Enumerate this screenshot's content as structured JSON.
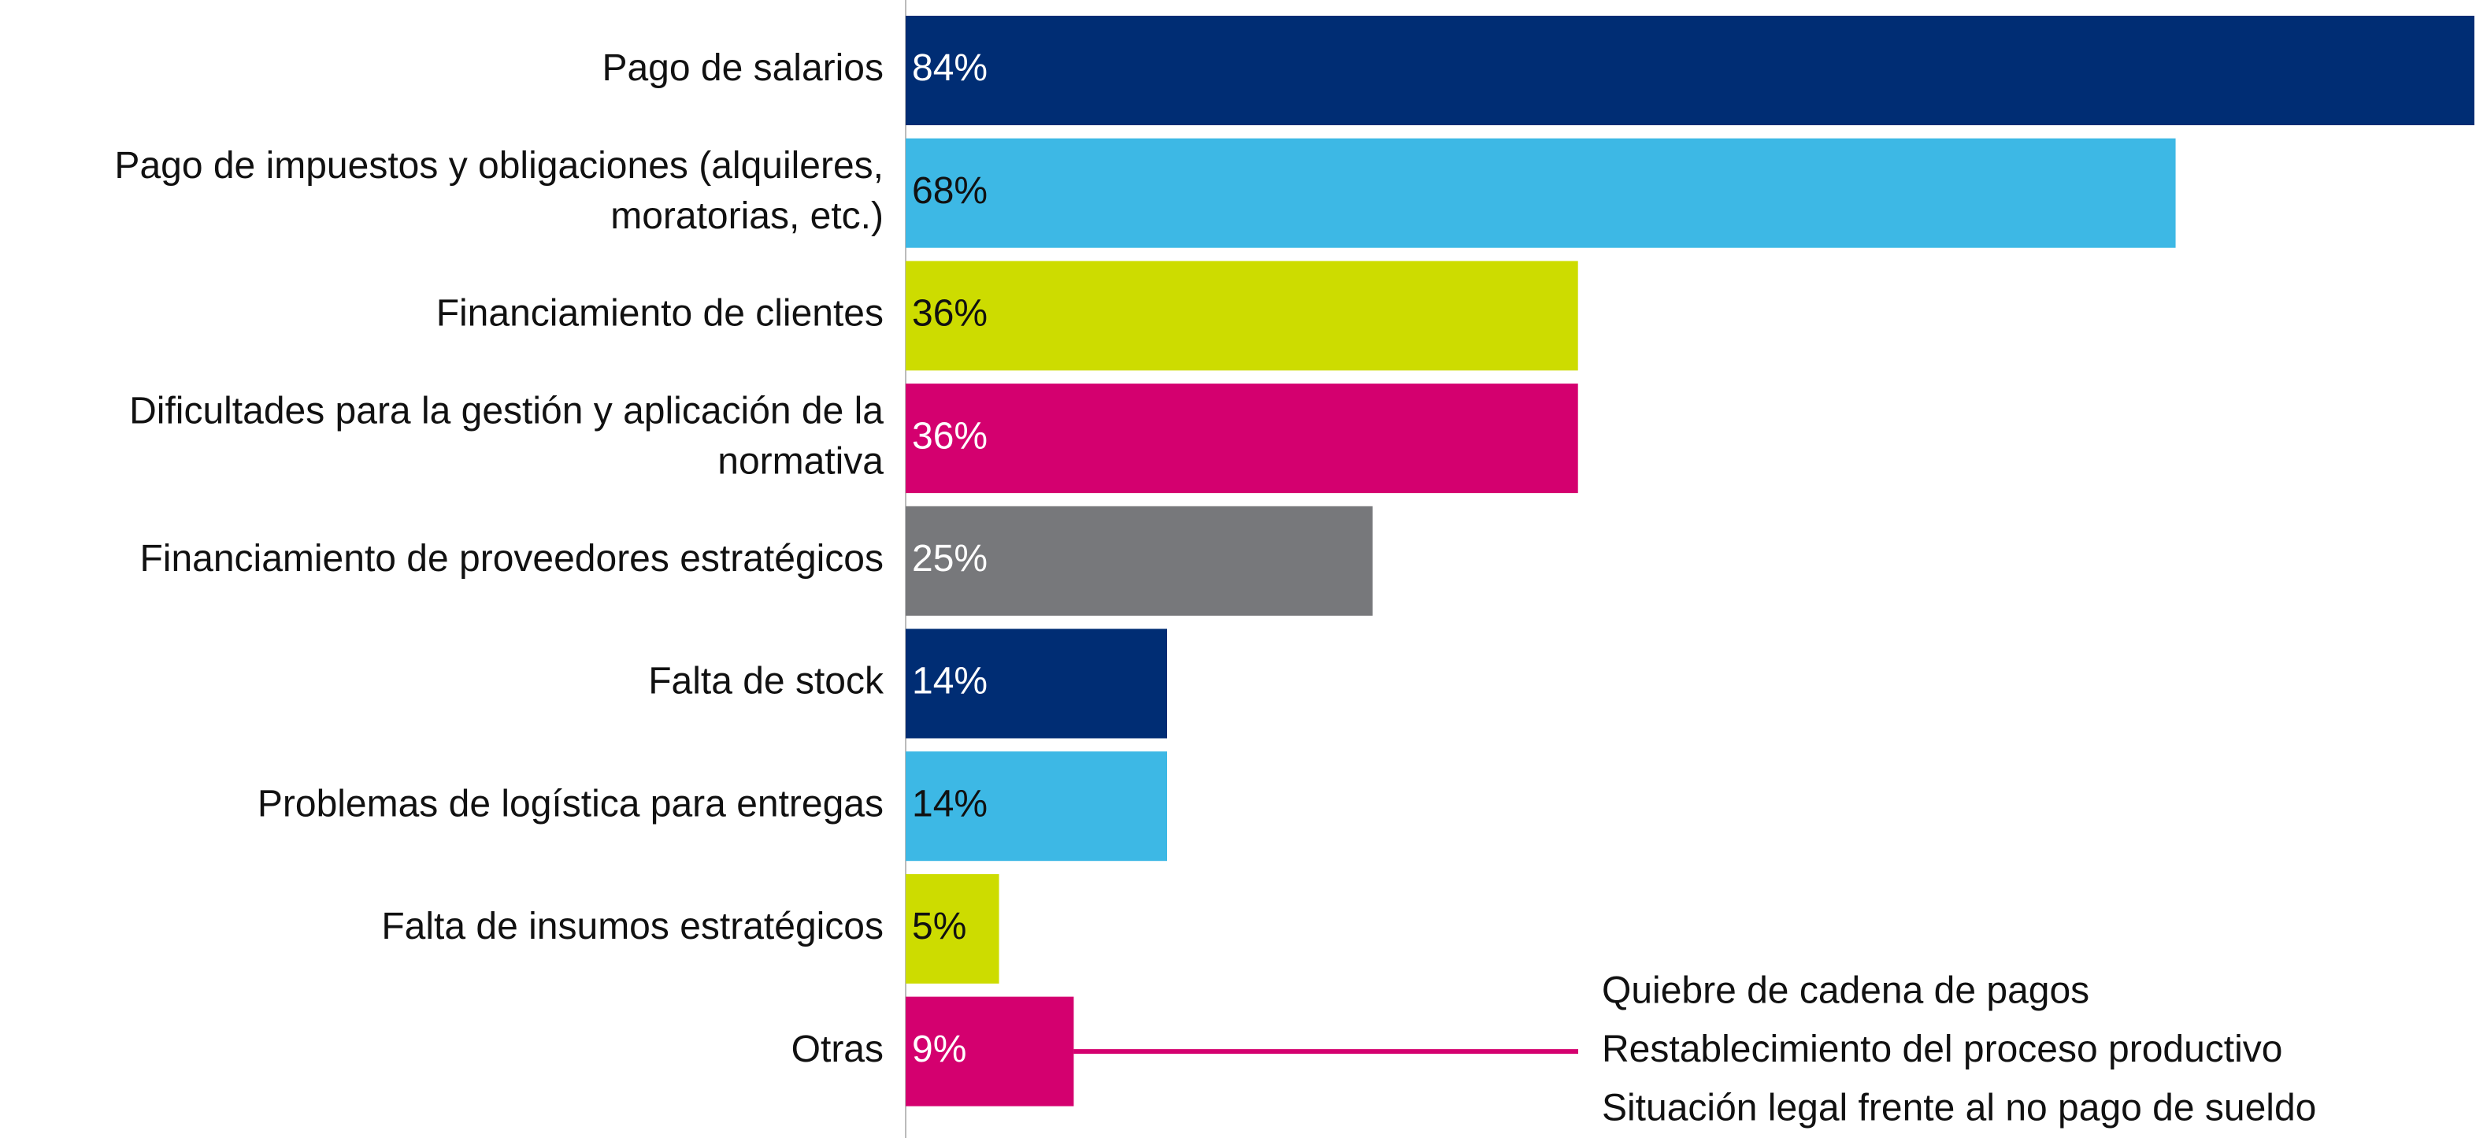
{
  "chart_data": {
    "type": "bar",
    "orientation": "horizontal",
    "categories": [
      "Pago de salarios",
      "Pago de impuestos y obligaciones (alquileres,\nmoratorias, etc.)",
      "Financiamiento de clientes",
      "Dificultades para la gestión y aplicación de la\nnormativa",
      "Financiamiento de proveedores estratégicos",
      "Falta de stock",
      "Problemas de logística para entregas",
      "Falta de insumos estratégicos",
      "Otras"
    ],
    "values": [
      84,
      68,
      36,
      36,
      25,
      14,
      14,
      5,
      9
    ],
    "value_labels": [
      "84%",
      "68%",
      "36%",
      "36%",
      "25%",
      "14%",
      "14%",
      "5%",
      "9%"
    ],
    "colors": [
      "#002d74",
      "#3db8e5",
      "#cddc00",
      "#d4006f",
      "#77787b",
      "#002d74",
      "#3db8e5",
      "#cddc00",
      "#d4006f"
    ],
    "label_colors": [
      "#ffffff",
      "#111111",
      "#111111",
      "#ffffff",
      "#ffffff",
      "#ffffff",
      "#111111",
      "#111111",
      "#ffffff"
    ],
    "annotation": {
      "category_index": 8,
      "color": "#d4006f",
      "texts": [
        "Quiebre de cadena de pagos",
        "Restablecimiento del proceso productivo",
        "Situación legal frente al no pago de sueldo"
      ]
    }
  }
}
